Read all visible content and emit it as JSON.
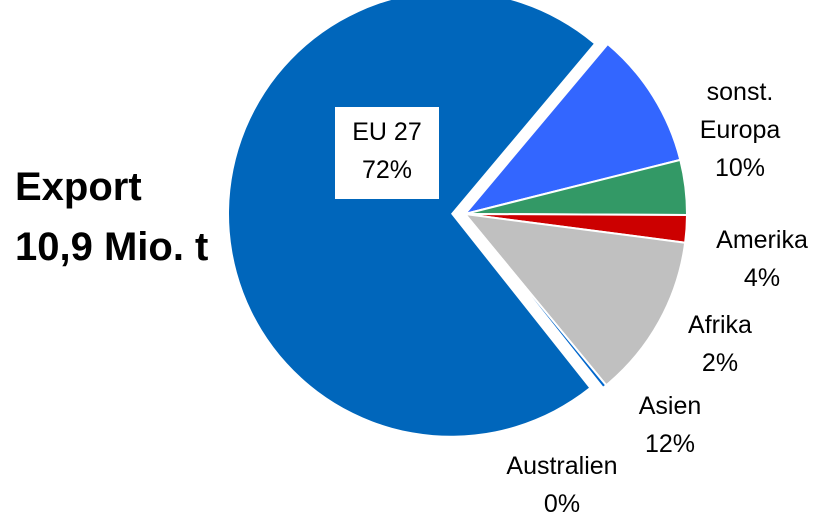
{
  "chart_data": {
    "type": "pie",
    "title_lines": [
      "Export",
      "10,9 Mio. t"
    ],
    "slices": [
      {
        "label_lines": [
          "sonst.",
          "Europa",
          "10%"
        ],
        "value": 10,
        "color": "#3366ff"
      },
      {
        "label_lines": [
          "Amerika",
          "4%"
        ],
        "value": 4,
        "color": "#339966"
      },
      {
        "label_lines": [
          "Afrika",
          "2%"
        ],
        "value": 2,
        "color": "#cc0000"
      },
      {
        "label_lines": [
          "Asien",
          "12%"
        ],
        "value": 12,
        "color": "#c0c0c0"
      },
      {
        "label_lines": [
          "Australien",
          "0%"
        ],
        "value": 0.3,
        "color": "#0066cc"
      },
      {
        "label_lines": [
          "EU 27",
          "72%"
        ],
        "value": 72,
        "color": "#0066bb"
      }
    ],
    "legend": "none"
  }
}
